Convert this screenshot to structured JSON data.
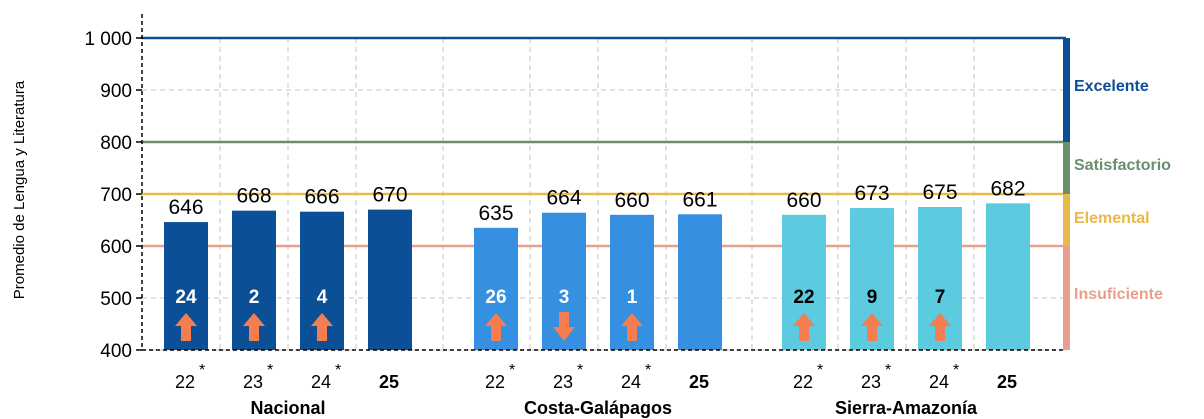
{
  "chart_data": {
    "type": "bar",
    "ylabel": "Promedio de Lengua y Literatura",
    "ylim": [
      400,
      1000
    ],
    "yticks": [
      {
        "value": 400,
        "label": "400"
      },
      {
        "value": 500,
        "label": "500"
      },
      {
        "value": 600,
        "label": "600"
      },
      {
        "value": 700,
        "label": "700"
      },
      {
        "value": 800,
        "label": "800"
      },
      {
        "value": 900,
        "label": "900"
      },
      {
        "value": 1000,
        "label": "1 000"
      }
    ],
    "grid": true,
    "levels": [
      {
        "name": "Insuficiente",
        "from": 400,
        "to": 600,
        "color": "#e8a08c"
      },
      {
        "name": "Elemental",
        "from": 600,
        "to": 700,
        "color": "#e9b949"
      },
      {
        "name": "Satisfactorio",
        "from": 700,
        "to": 800,
        "color": "#6a8f6c"
      },
      {
        "name": "Excelente",
        "from": 800,
        "to": 1000,
        "color": "#0b4f96"
      }
    ],
    "thresholds": [
      {
        "value": 600,
        "color": "#e8a08c"
      },
      {
        "value": 700,
        "color": "#e9b949"
      },
      {
        "value": 800,
        "color": "#6a8f6c"
      },
      {
        "value": 1000,
        "color": "#0b4f96"
      }
    ],
    "groups": [
      {
        "name": "Nacional",
        "color": "#0b4f96",
        "diff_color": "#ffffff",
        "bars": [
          {
            "category": "22",
            "star": "*",
            "bold": false,
            "value": 646,
            "diff": "24",
            "arrow": "up"
          },
          {
            "category": "23",
            "star": "*",
            "bold": false,
            "value": 668,
            "diff": "2",
            "arrow": "up"
          },
          {
            "category": "24",
            "star": "*",
            "bold": false,
            "value": 666,
            "diff": "4",
            "arrow": "up"
          },
          {
            "category": "25",
            "star": "",
            "bold": true,
            "value": 670,
            "diff": "",
            "arrow": ""
          }
        ]
      },
      {
        "name": "Costa-Galápagos",
        "color": "#3590e2",
        "diff_color": "#ffffff",
        "bars": [
          {
            "category": "22",
            "star": "*",
            "bold": false,
            "value": 635,
            "diff": "26",
            "arrow": "up"
          },
          {
            "category": "23",
            "star": "*",
            "bold": false,
            "value": 664,
            "diff": "3",
            "arrow": "down"
          },
          {
            "category": "24",
            "star": "*",
            "bold": false,
            "value": 660,
            "diff": "1",
            "arrow": "up"
          },
          {
            "category": "25",
            "star": "",
            "bold": true,
            "value": 661,
            "diff": "",
            "arrow": ""
          }
        ]
      },
      {
        "name": "Sierra-Amazonía",
        "color": "#5ccbe0",
        "diff_color": "#000000",
        "bars": [
          {
            "category": "22",
            "star": "*",
            "bold": false,
            "value": 660,
            "diff": "22",
            "arrow": "up"
          },
          {
            "category": "23",
            "star": "*",
            "bold": false,
            "value": 673,
            "diff": "9",
            "arrow": "up"
          },
          {
            "category": "24",
            "star": "*",
            "bold": false,
            "value": 675,
            "diff": "7",
            "arrow": "up"
          },
          {
            "category": "25",
            "star": "",
            "bold": true,
            "value": 682,
            "diff": "",
            "arrow": ""
          }
        ]
      }
    ],
    "arrow_color": "#f47e50"
  }
}
